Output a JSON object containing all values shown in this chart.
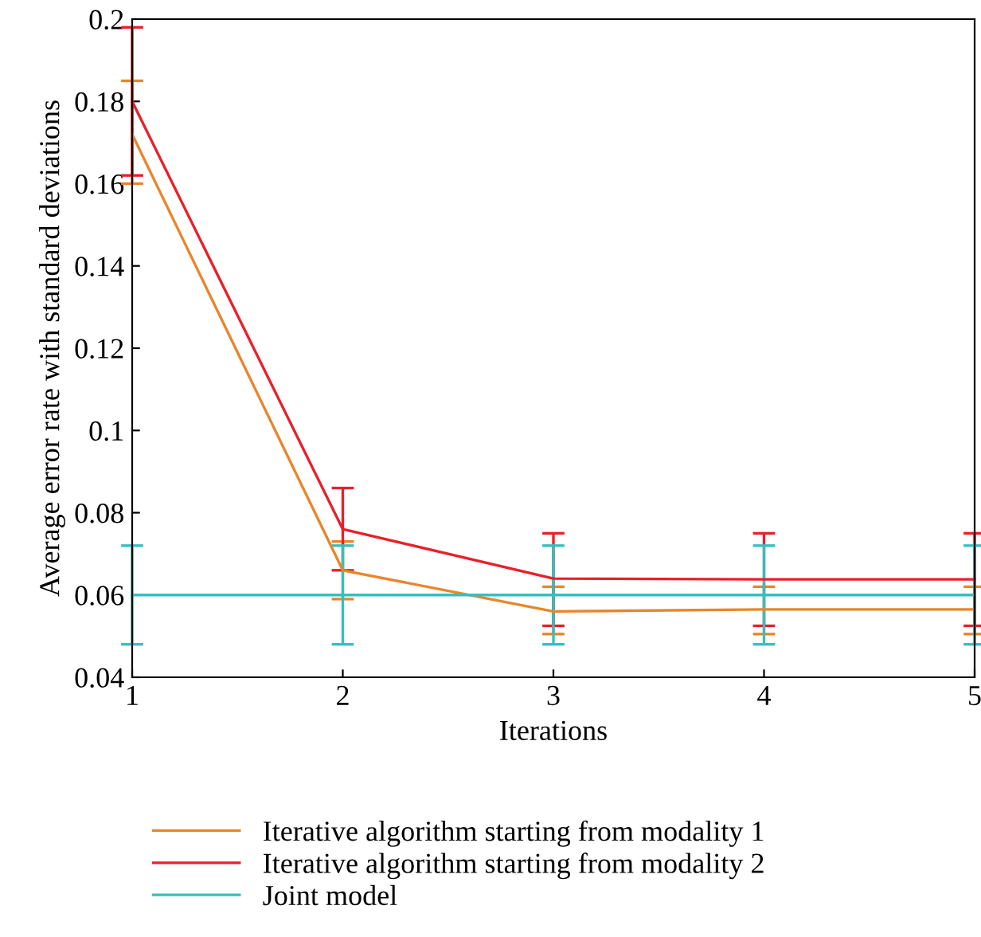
{
  "chart_data": {
    "type": "line",
    "xlabel": "Iterations",
    "ylabel": "Average error rate with standard deviations",
    "x": [
      1,
      2,
      3,
      4,
      5
    ],
    "series": [
      {
        "name": "Iterative algorithm starting from modality 1",
        "color": "#e8862a",
        "values": [
          0.172,
          0.066,
          0.056,
          0.0565,
          0.0565
        ],
        "errors": [
          [
            0.16,
            0.185
          ],
          [
            0.059,
            0.073
          ],
          [
            0.0505,
            0.062
          ],
          [
            0.0505,
            0.062
          ],
          [
            0.0505,
            0.062
          ]
        ]
      },
      {
        "name": "Iterative algorithm starting from modality 2",
        "color": "#e8202a",
        "values": [
          0.18,
          0.076,
          0.064,
          0.0638,
          0.0638
        ],
        "errors": [
          [
            0.162,
            0.198
          ],
          [
            0.066,
            0.086
          ],
          [
            0.0525,
            0.075
          ],
          [
            0.0525,
            0.075
          ],
          [
            0.0525,
            0.075
          ]
        ]
      },
      {
        "name": "Joint model",
        "color": "#33c0c0",
        "values": [
          0.06,
          0.06,
          0.06,
          0.06,
          0.06
        ],
        "errors": [
          [
            0.048,
            0.072
          ],
          [
            0.048,
            0.072
          ],
          [
            0.048,
            0.072
          ],
          [
            0.048,
            0.072
          ],
          [
            0.048,
            0.072
          ]
        ]
      }
    ],
    "xlim": [
      1,
      5
    ],
    "xticks": [
      1,
      2,
      3,
      4,
      5
    ],
    "ylim": [
      0.04,
      0.2
    ],
    "yticks": [
      0.04,
      0.06,
      0.08,
      0.1,
      0.12,
      0.14,
      0.16,
      0.18,
      0.2
    ],
    "grid": false,
    "legend": "bottom",
    "marker": "none",
    "line_style": "solid"
  }
}
